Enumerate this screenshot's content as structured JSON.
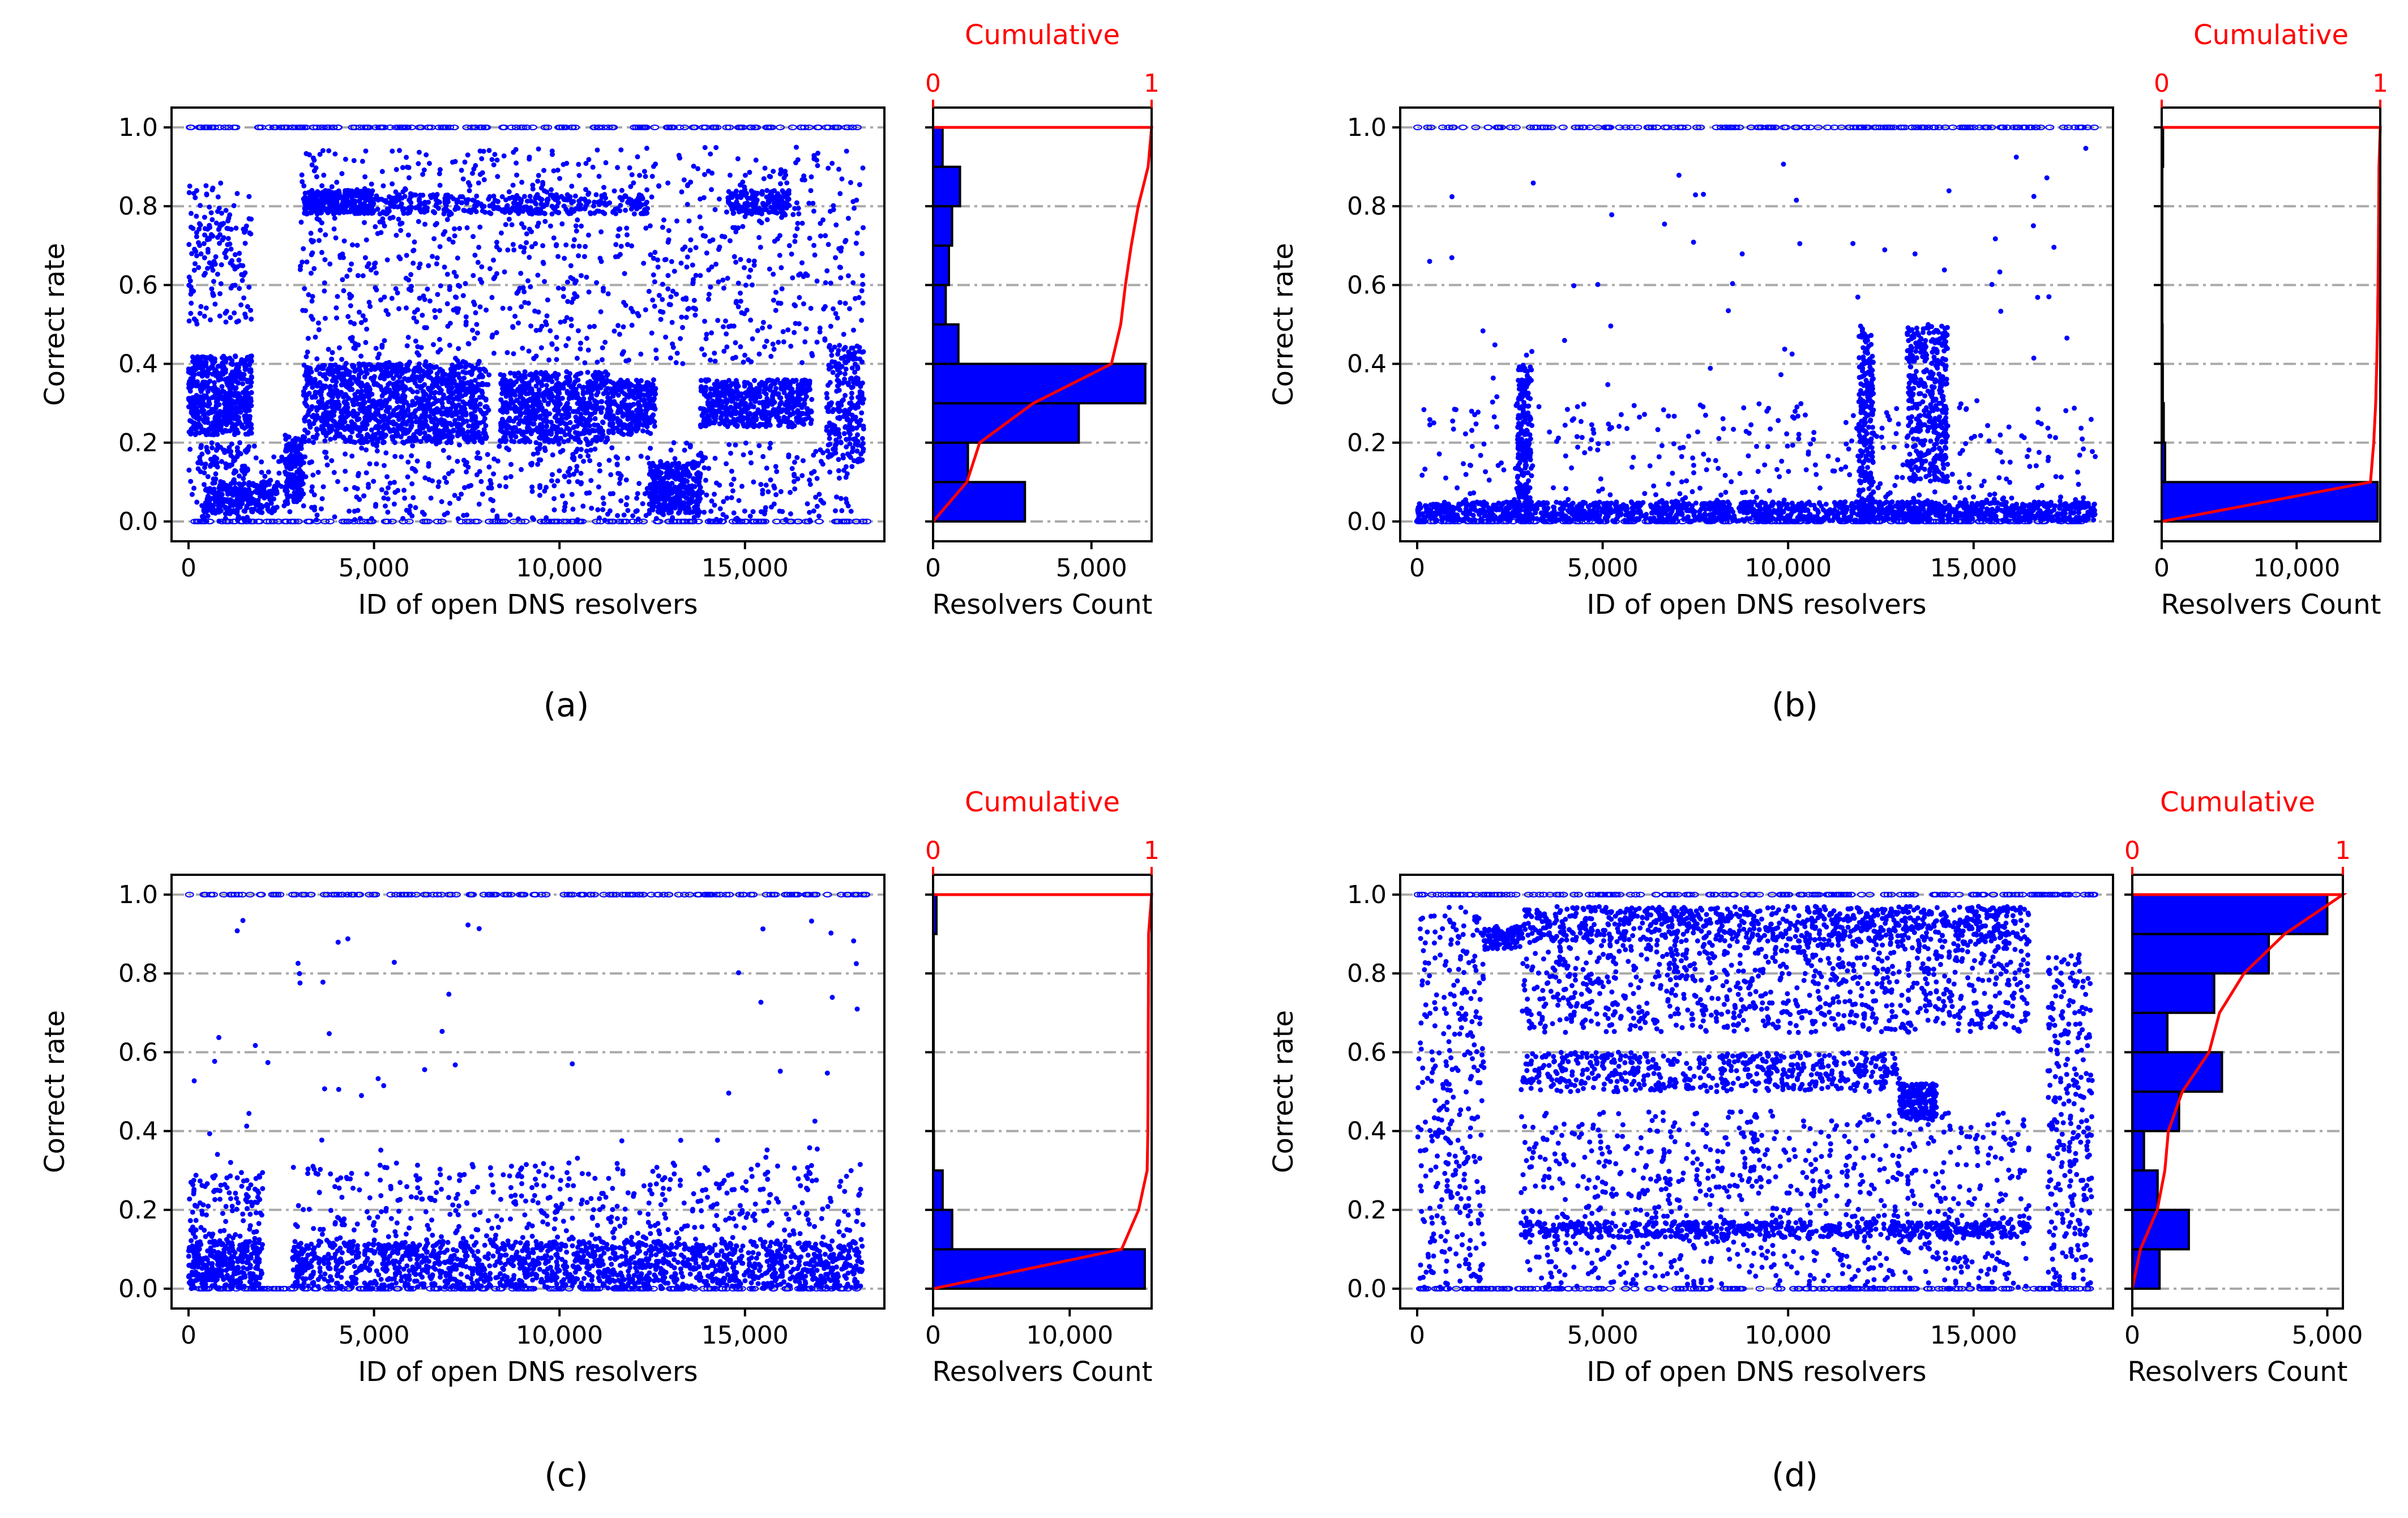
{
  "figure": {
    "scatter_ylabel": "Correct rate",
    "scatter_xlabel": "ID of open DNS resolvers",
    "hist_xlabel": "Resolvers Count",
    "cumulative_label": "Cumulative",
    "cumulative_ticks": [
      "0",
      "1"
    ],
    "scatter_color": "#0000ff",
    "cdf_color": "#ff0000",
    "hist_fill": "#0000ff"
  },
  "chart_data": [
    {
      "panel": "(a)",
      "type": "scatter",
      "x_range": [
        0,
        18300
      ],
      "ylim": [
        0,
        1
      ],
      "x_ticks": [
        0,
        5000,
        10000,
        15000
      ],
      "x_tick_labels": [
        "0",
        "5,000",
        "10,000",
        "15,000"
      ],
      "y_ticks": [
        0,
        0.2,
        0.4,
        0.6,
        0.8,
        1.0
      ],
      "y_tick_labels": [
        "0.0",
        "0.2",
        "0.4",
        "0.6",
        "0.8",
        "1.0"
      ],
      "bands": [
        {
          "x": [
            0,
            1700
          ],
          "y": [
            0.22,
            0.42
          ],
          "weight": 10
        },
        {
          "x": [
            0,
            1700
          ],
          "y": [
            0.5,
            0.86
          ],
          "weight": 3
        },
        {
          "x": [
            300,
            1700
          ],
          "y": [
            0.0,
            0.2
          ],
          "weight": 2
        },
        {
          "x": [
            400,
            2400
          ],
          "y": [
            0.02,
            0.1
          ],
          "weight": 4
        },
        {
          "x": [
            2600,
            3100
          ],
          "y": [
            0.05,
            0.22
          ],
          "weight": 3
        },
        {
          "x": [
            3100,
            8100
          ],
          "y": [
            0.2,
            0.4
          ],
          "weight": 22
        },
        {
          "x": [
            8400,
            11300
          ],
          "y": [
            0.2,
            0.38
          ],
          "weight": 12
        },
        {
          "x": [
            11300,
            12600
          ],
          "y": [
            0.22,
            0.36
          ],
          "weight": 5
        },
        {
          "x": [
            12400,
            13800
          ],
          "y": [
            0.02,
            0.15
          ],
          "weight": 6
        },
        {
          "x": [
            13800,
            16800
          ],
          "y": [
            0.24,
            0.36
          ],
          "weight": 10
        },
        {
          "x": [
            17200,
            18200
          ],
          "y": [
            0.15,
            0.45
          ],
          "weight": 4
        },
        {
          "x": [
            3100,
            5000
          ],
          "y": [
            0.78,
            0.84
          ],
          "weight": 6
        },
        {
          "x": [
            5000,
            12500
          ],
          "y": [
            0.78,
            0.83
          ],
          "weight": 6
        },
        {
          "x": [
            14500,
            16200
          ],
          "y": [
            0.78,
            0.84
          ],
          "weight": 3
        },
        {
          "x": [
            3000,
            18200
          ],
          "y": [
            0.4,
            0.95
          ],
          "weight": 18
        },
        {
          "x": [
            0,
            18200
          ],
          "y": [
            0.0,
            0.2
          ],
          "weight": 10
        }
      ],
      "y_lines": [
        0.0,
        1.0
      ],
      "hist_bins": [
        0,
        0.1,
        0.2,
        0.3,
        0.4,
        0.5,
        0.6,
        0.7,
        0.8,
        0.9,
        1.0
      ],
      "hist_counts": [
        2900,
        1100,
        4600,
        6700,
        800,
        400,
        500,
        600,
        850,
        300
      ],
      "hist_xlim": [
        0,
        6900
      ],
      "hist_ticks": [
        0,
        5000
      ],
      "hist_tick_labels": [
        "0",
        "5,000"
      ]
    },
    {
      "panel": "(b)",
      "type": "scatter",
      "x_range": [
        0,
        18300
      ],
      "ylim": [
        0,
        1
      ],
      "x_ticks": [
        0,
        5000,
        10000,
        15000
      ],
      "x_tick_labels": [
        "0",
        "5,000",
        "10,000",
        "15,000"
      ],
      "y_ticks": [
        0,
        0.2,
        0.4,
        0.6,
        0.8,
        1.0
      ],
      "y_tick_labels": [
        "0.0",
        "0.2",
        "0.4",
        "0.6",
        "0.8",
        "1.0"
      ],
      "bands": [
        {
          "x": [
            0,
            18300
          ],
          "y": [
            0.0,
            0.05
          ],
          "weight": 30
        },
        {
          "x": [
            2700,
            3100
          ],
          "y": [
            0.0,
            0.4
          ],
          "weight": 4
        },
        {
          "x": [
            11900,
            12300
          ],
          "y": [
            0.0,
            0.5
          ],
          "weight": 4
        },
        {
          "x": [
            13200,
            14300
          ],
          "y": [
            0.1,
            0.5
          ],
          "weight": 7
        },
        {
          "x": [
            0,
            18300
          ],
          "y": [
            0.05,
            0.3
          ],
          "weight": 6
        },
        {
          "x": [
            0,
            18300
          ],
          "y": [
            0.3,
            0.95
          ],
          "weight": 1
        }
      ],
      "y_lines": [
        0.0,
        1.0
      ],
      "hist_bins": [
        0,
        0.1,
        0.2,
        0.3,
        0.4,
        0.5,
        0.6,
        0.7,
        0.8,
        0.9,
        1.0
      ],
      "hist_counts": [
        16000,
        250,
        150,
        80,
        60,
        40,
        30,
        20,
        20,
        100
      ],
      "hist_xlim": [
        0,
        16200
      ],
      "hist_ticks": [
        0,
        10000
      ],
      "hist_tick_labels": [
        "0",
        "10,000"
      ]
    },
    {
      "panel": "(c)",
      "type": "scatter",
      "x_range": [
        0,
        18300
      ],
      "ylim": [
        0,
        1
      ],
      "x_ticks": [
        0,
        5000,
        10000,
        15000
      ],
      "x_tick_labels": [
        "0",
        "5,000",
        "10,000",
        "15,000"
      ],
      "y_ticks": [
        0,
        0.2,
        0.4,
        0.6,
        0.8,
        1.0
      ],
      "y_tick_labels": [
        "0.0",
        "0.2",
        "0.4",
        "0.6",
        "0.8",
        "1.0"
      ],
      "bands": [
        {
          "x": [
            0,
            2000
          ],
          "y": [
            0.0,
            0.12
          ],
          "weight": 6
        },
        {
          "x": [
            2800,
            18200
          ],
          "y": [
            0.0,
            0.12
          ],
          "weight": 30
        },
        {
          "x": [
            2800,
            18200
          ],
          "y": [
            0.12,
            0.32
          ],
          "weight": 8
        },
        {
          "x": [
            0,
            2000
          ],
          "y": [
            0.12,
            0.3
          ],
          "weight": 2
        },
        {
          "x": [
            0,
            18300
          ],
          "y": [
            0.32,
            0.95
          ],
          "weight": 1
        }
      ],
      "y_lines": [
        0.0,
        1.0
      ],
      "hist_bins": [
        0,
        0.1,
        0.2,
        0.3,
        0.4,
        0.5,
        0.6,
        0.7,
        0.8,
        0.9,
        1.0
      ],
      "hist_counts": [
        15500,
        1400,
        700,
        60,
        20,
        10,
        10,
        10,
        10,
        250
      ],
      "hist_xlim": [
        0,
        16000
      ],
      "hist_ticks": [
        0,
        10000
      ],
      "hist_tick_labels": [
        "0",
        "10,000"
      ]
    },
    {
      "panel": "(d)",
      "type": "scatter",
      "x_range": [
        0,
        18300
      ],
      "ylim": [
        0,
        1
      ],
      "x_ticks": [
        0,
        5000,
        10000,
        15000
      ],
      "x_tick_labels": [
        "0",
        "5,000",
        "10,000",
        "15,000"
      ],
      "y_ticks": [
        0,
        0.2,
        0.4,
        0.6,
        0.8,
        1.0
      ],
      "y_tick_labels": [
        "0.0",
        "0.2",
        "0.4",
        "0.6",
        "0.8",
        "1.0"
      ],
      "bands": [
        {
          "x": [
            0,
            1800
          ],
          "y": [
            0.0,
            0.97
          ],
          "weight": 6
        },
        {
          "x": [
            1800,
            2800
          ],
          "y": [
            0.86,
            0.92
          ],
          "weight": 2
        },
        {
          "x": [
            2800,
            16500
          ],
          "y": [
            0.88,
            0.97
          ],
          "weight": 16
        },
        {
          "x": [
            2800,
            16500
          ],
          "y": [
            0.65,
            0.88
          ],
          "weight": 16
        },
        {
          "x": [
            2800,
            13000
          ],
          "y": [
            0.5,
            0.6
          ],
          "weight": 10
        },
        {
          "x": [
            13000,
            14000
          ],
          "y": [
            0.43,
            0.52
          ],
          "weight": 4
        },
        {
          "x": [
            2800,
            16500
          ],
          "y": [
            0.13,
            0.17
          ],
          "weight": 10
        },
        {
          "x": [
            2800,
            16500
          ],
          "y": [
            0.0,
            0.45
          ],
          "weight": 16
        },
        {
          "x": [
            17000,
            18200
          ],
          "y": [
            0.0,
            0.85
          ],
          "weight": 5
        }
      ],
      "y_lines": [
        0.0,
        1.0
      ],
      "hist_bins": [
        0,
        0.1,
        0.2,
        0.3,
        0.4,
        0.5,
        0.6,
        0.7,
        0.8,
        0.9,
        1.0
      ],
      "hist_counts": [
        700,
        1450,
        650,
        300,
        1200,
        2300,
        900,
        2100,
        3500,
        5000
      ],
      "hist_xlim": [
        0,
        5400
      ],
      "hist_ticks": [
        0,
        5000
      ],
      "hist_tick_labels": [
        "0",
        "5,000"
      ]
    }
  ],
  "captions": [
    "(a)",
    "(b)",
    "(c)",
    "(d)"
  ]
}
